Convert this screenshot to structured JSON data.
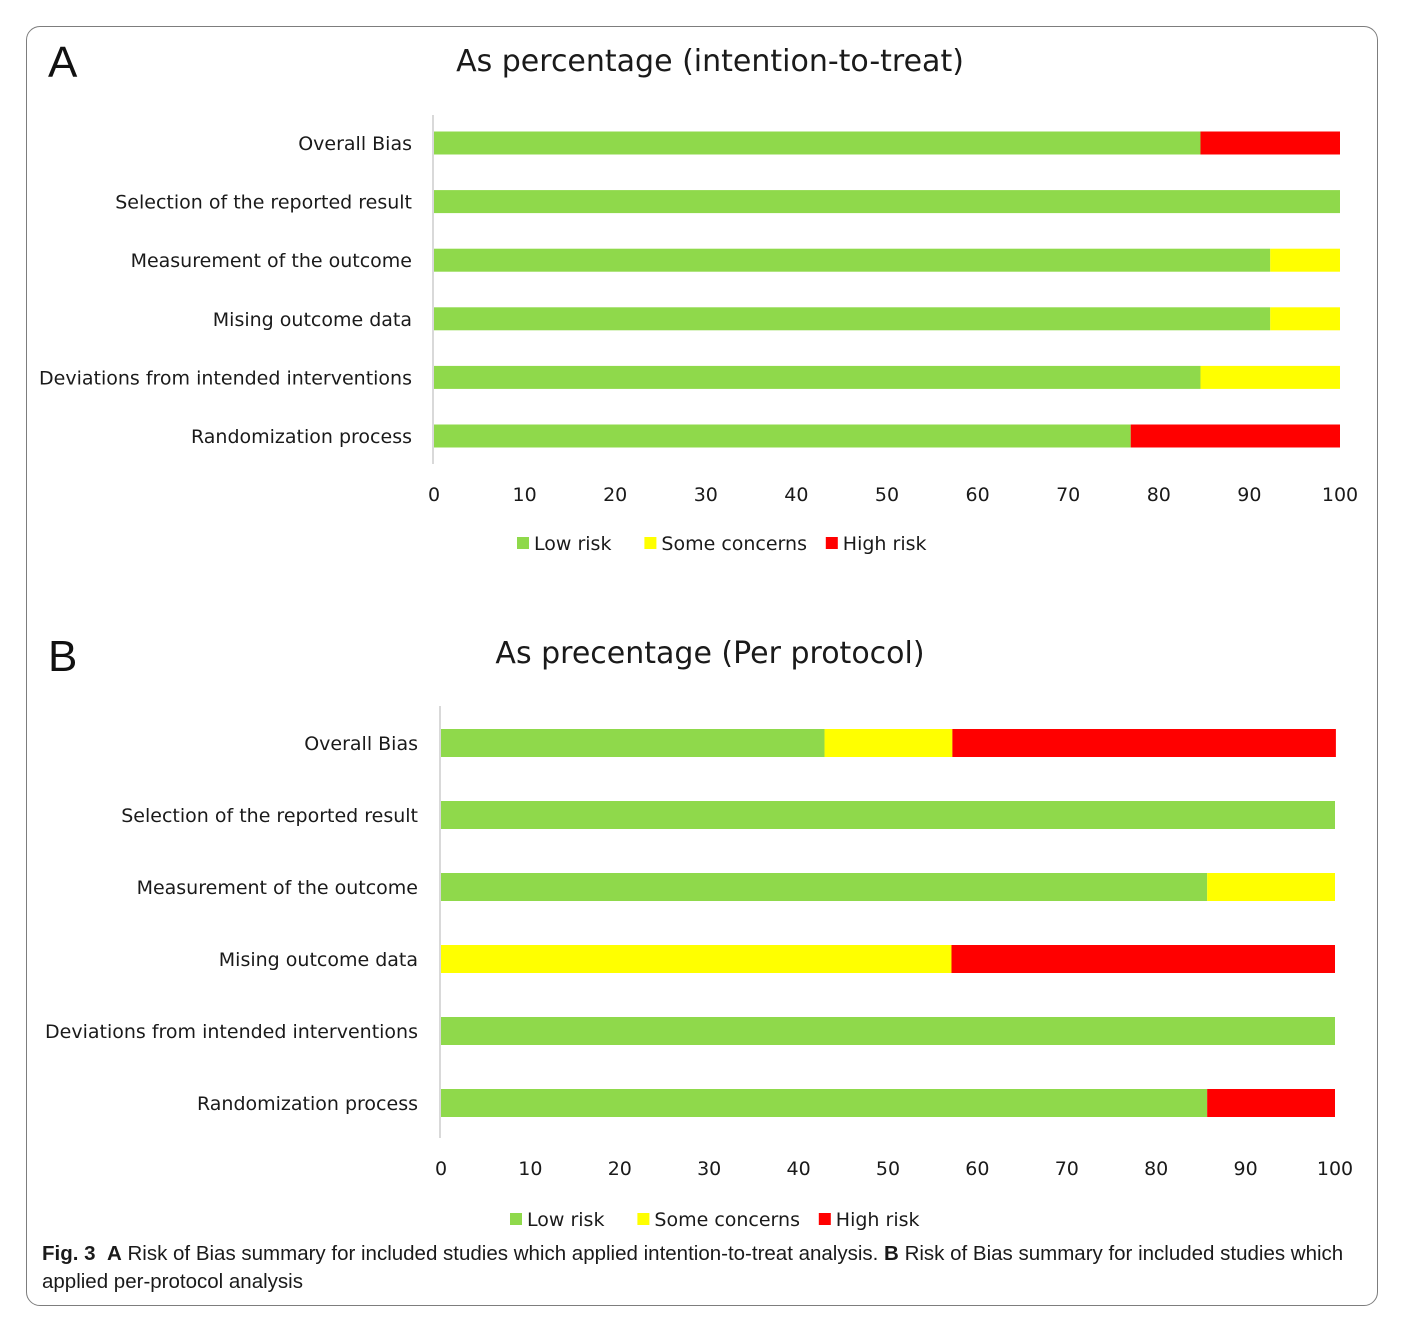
{
  "figure": {
    "caption": {
      "fig_label": "Fig. 3",
      "a_label": "A",
      "a_text": "Risk of Bias summary for included studies which applied intention-to-treat analysis.",
      "b_label": "B",
      "b_text": "Risk of Bias summary for included studies which applied per-protocol analysis"
    }
  },
  "colors": {
    "low": "#8fd94b",
    "some": "#ffff00",
    "high": "#ff0000"
  },
  "chart_data": [
    {
      "panel": "A",
      "type": "bar",
      "orientation": "horizontal",
      "stacked": true,
      "title": "As percentage (intention-to-treat)",
      "categories": [
        "Overall Bias",
        "Selection of the reported result",
        "Measurement of the outcome",
        "Mising outcome data",
        "Deviations from intended interventions",
        "Randomization process"
      ],
      "series": [
        {
          "name": "Low risk",
          "color": "#8fd94b",
          "values": [
            84.6,
            100,
            92.3,
            92.3,
            84.6,
            76.9
          ]
        },
        {
          "name": "Some concerns",
          "color": "#ffff00",
          "values": [
            0,
            0,
            7.7,
            7.7,
            15.4,
            0
          ]
        },
        {
          "name": "High risk",
          "color": "#ff0000",
          "values": [
            15.4,
            0,
            0,
            0,
            0,
            23.1
          ]
        }
      ],
      "xlim": [
        0,
        100
      ],
      "xticks": [
        "0",
        "10",
        "20",
        "30",
        "40",
        "50",
        "60",
        "70",
        "80",
        "90",
        "100"
      ],
      "legend": "bottom",
      "grid": false
    },
    {
      "panel": "B",
      "type": "bar",
      "orientation": "horizontal",
      "stacked": true,
      "title": "As precentage (Per protocol)",
      "categories": [
        "Overall Bias",
        "Selection of the reported result",
        "Measurement of the outcome",
        "Mising outcome data",
        "Deviations from intended interventions",
        "Randomization process"
      ],
      "series": [
        {
          "name": "Low risk",
          "color": "#8fd94b",
          "values": [
            42.9,
            100,
            85.7,
            0,
            100,
            85.7
          ]
        },
        {
          "name": "Some concerns",
          "color": "#ffff00",
          "values": [
            14.3,
            0,
            14.3,
            57.1,
            0,
            0
          ]
        },
        {
          "name": "High risk",
          "color": "#ff0000",
          "values": [
            42.9,
            0,
            0,
            42.9,
            0,
            14.3
          ]
        }
      ],
      "xlim": [
        0,
        100
      ],
      "xticks": [
        "0",
        "10",
        "20",
        "30",
        "40",
        "50",
        "60",
        "70",
        "80",
        "90",
        "100"
      ],
      "legend": "bottom",
      "grid": false
    }
  ]
}
